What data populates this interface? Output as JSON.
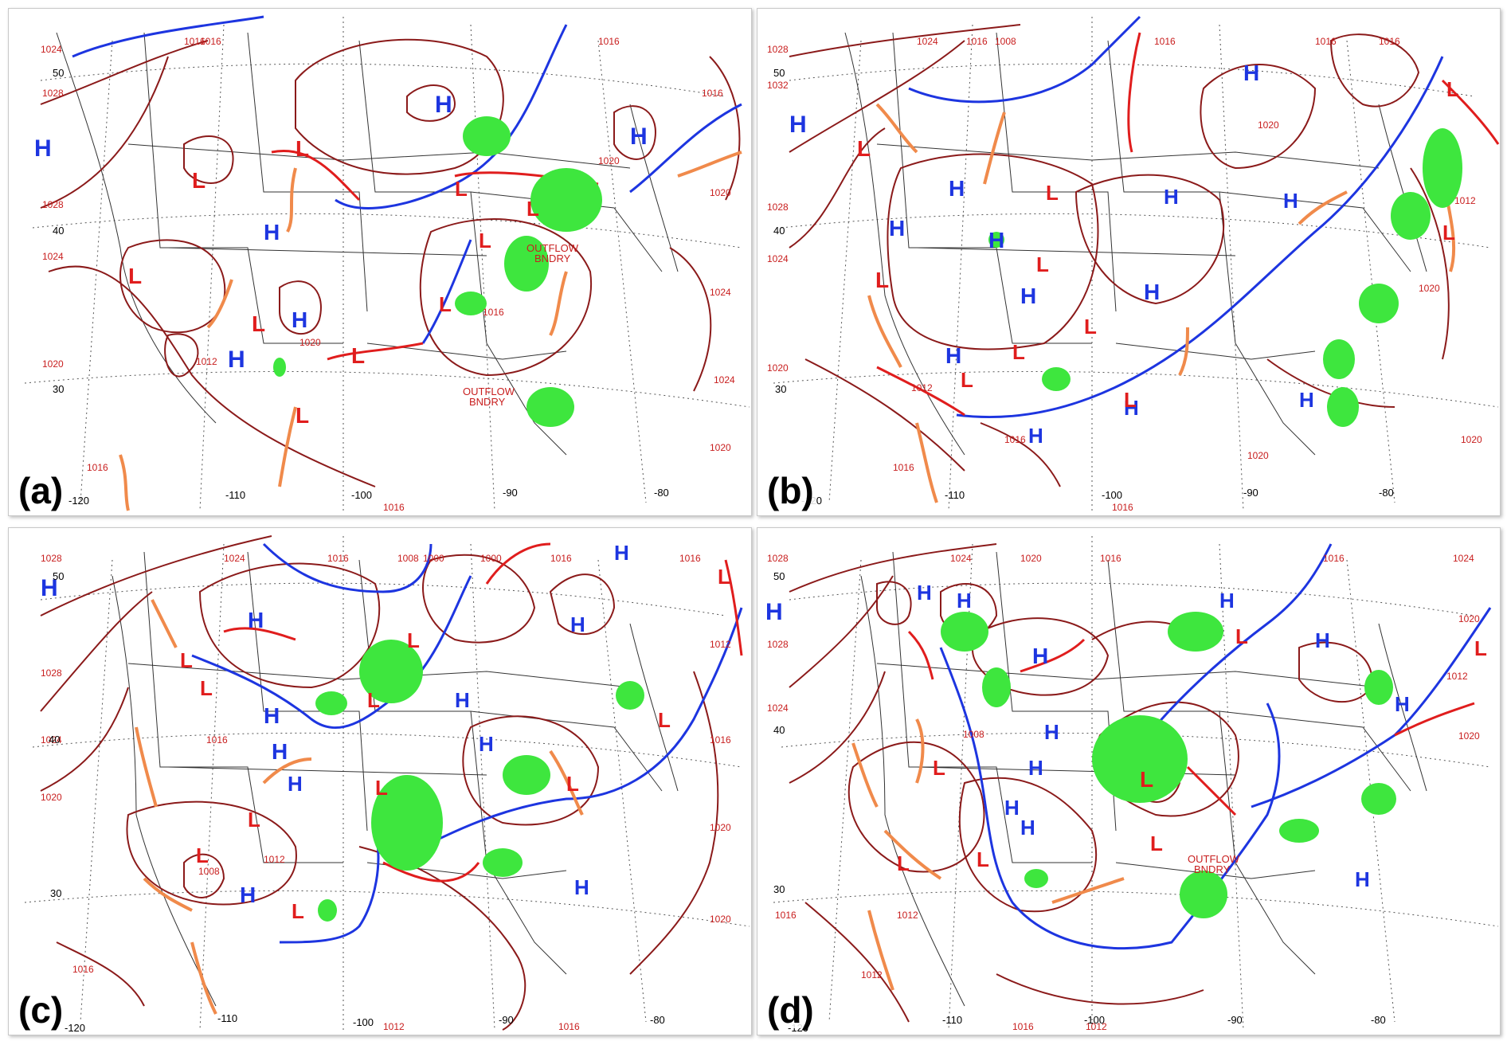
{
  "colors": {
    "isobar": "#8b1a1a",
    "cold_front": "#1d35e0",
    "warm_front": "#e01d1d",
    "trough": "#f08a4b",
    "precip": "#3ee63e",
    "high": "#1d35e0",
    "low": "#e01d1d",
    "isobar_label": "#c81e1e",
    "boundaries": "#333333"
  },
  "axis_labels": {
    "lat": [
      "50",
      "40",
      "30"
    ],
    "lon": [
      "-120",
      "-110",
      "-100",
      "-90",
      "-80"
    ]
  },
  "symbols": {
    "high": "H",
    "low": "L"
  },
  "panels": [
    {
      "tag": "(a)",
      "isobar_labels": [
        "1016",
        "1016",
        "1024",
        "1028",
        "1028",
        "1024",
        "1020",
        "1016",
        "1016",
        "1016",
        "1016",
        "1020",
        "1024",
        "1020",
        "1024",
        "1020",
        "1016",
        "1012",
        "1020"
      ],
      "annotations": [
        "OUTFLOW",
        "BNDRY",
        "OUTFLOW",
        "BNDRY"
      ]
    },
    {
      "tag": "(b)",
      "isobar_labels": [
        "1028",
        "1024",
        "1016",
        "1008",
        "1016",
        "1016",
        "1032",
        "1028",
        "1024",
        "1020",
        "1016",
        "1016",
        "1020",
        "1020",
        "1020",
        "1012",
        "1016",
        "1020",
        "1016",
        "1012"
      ],
      "annotations": []
    },
    {
      "tag": "(c)",
      "isobar_labels": [
        "1028",
        "1024",
        "1016",
        "1008",
        "1000",
        "1000",
        "1016",
        "1016",
        "1028",
        "1024",
        "1020",
        "1016",
        "1016",
        "1012",
        "1016",
        "1020",
        "1020",
        "1012",
        "1016",
        "1008",
        "1012"
      ],
      "annotations": []
    },
    {
      "tag": "(d)",
      "isobar_labels": [
        "1028",
        "1024",
        "1020",
        "1016",
        "1028",
        "1024",
        "1016",
        "1016",
        "1012",
        "1024",
        "1020",
        "1020",
        "1016",
        "1012",
        "1008",
        "1012",
        "1012"
      ],
      "annotations": [
        "OUTFLOW",
        "BNDRY"
      ]
    }
  ]
}
